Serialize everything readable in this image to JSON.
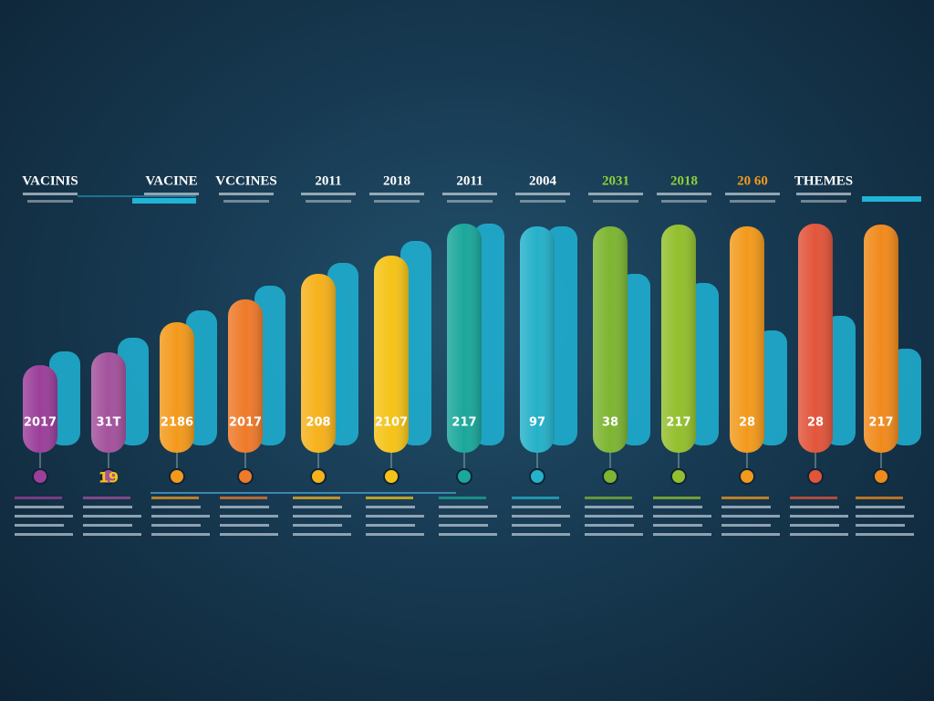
{
  "headings": [
    "VACINIS",
    "VACINE",
    "VCCINES",
    "2011",
    "2018",
    "2011",
    "2004",
    "2031",
    "2018",
    "20 60",
    "THEMES"
  ],
  "bar_labels": [
    "2017",
    "31T",
    "2186",
    "2017",
    "208",
    "2107",
    "217",
    "97",
    "38",
    "217",
    "28",
    "28",
    "217"
  ],
  "marker_label": "19"
}
